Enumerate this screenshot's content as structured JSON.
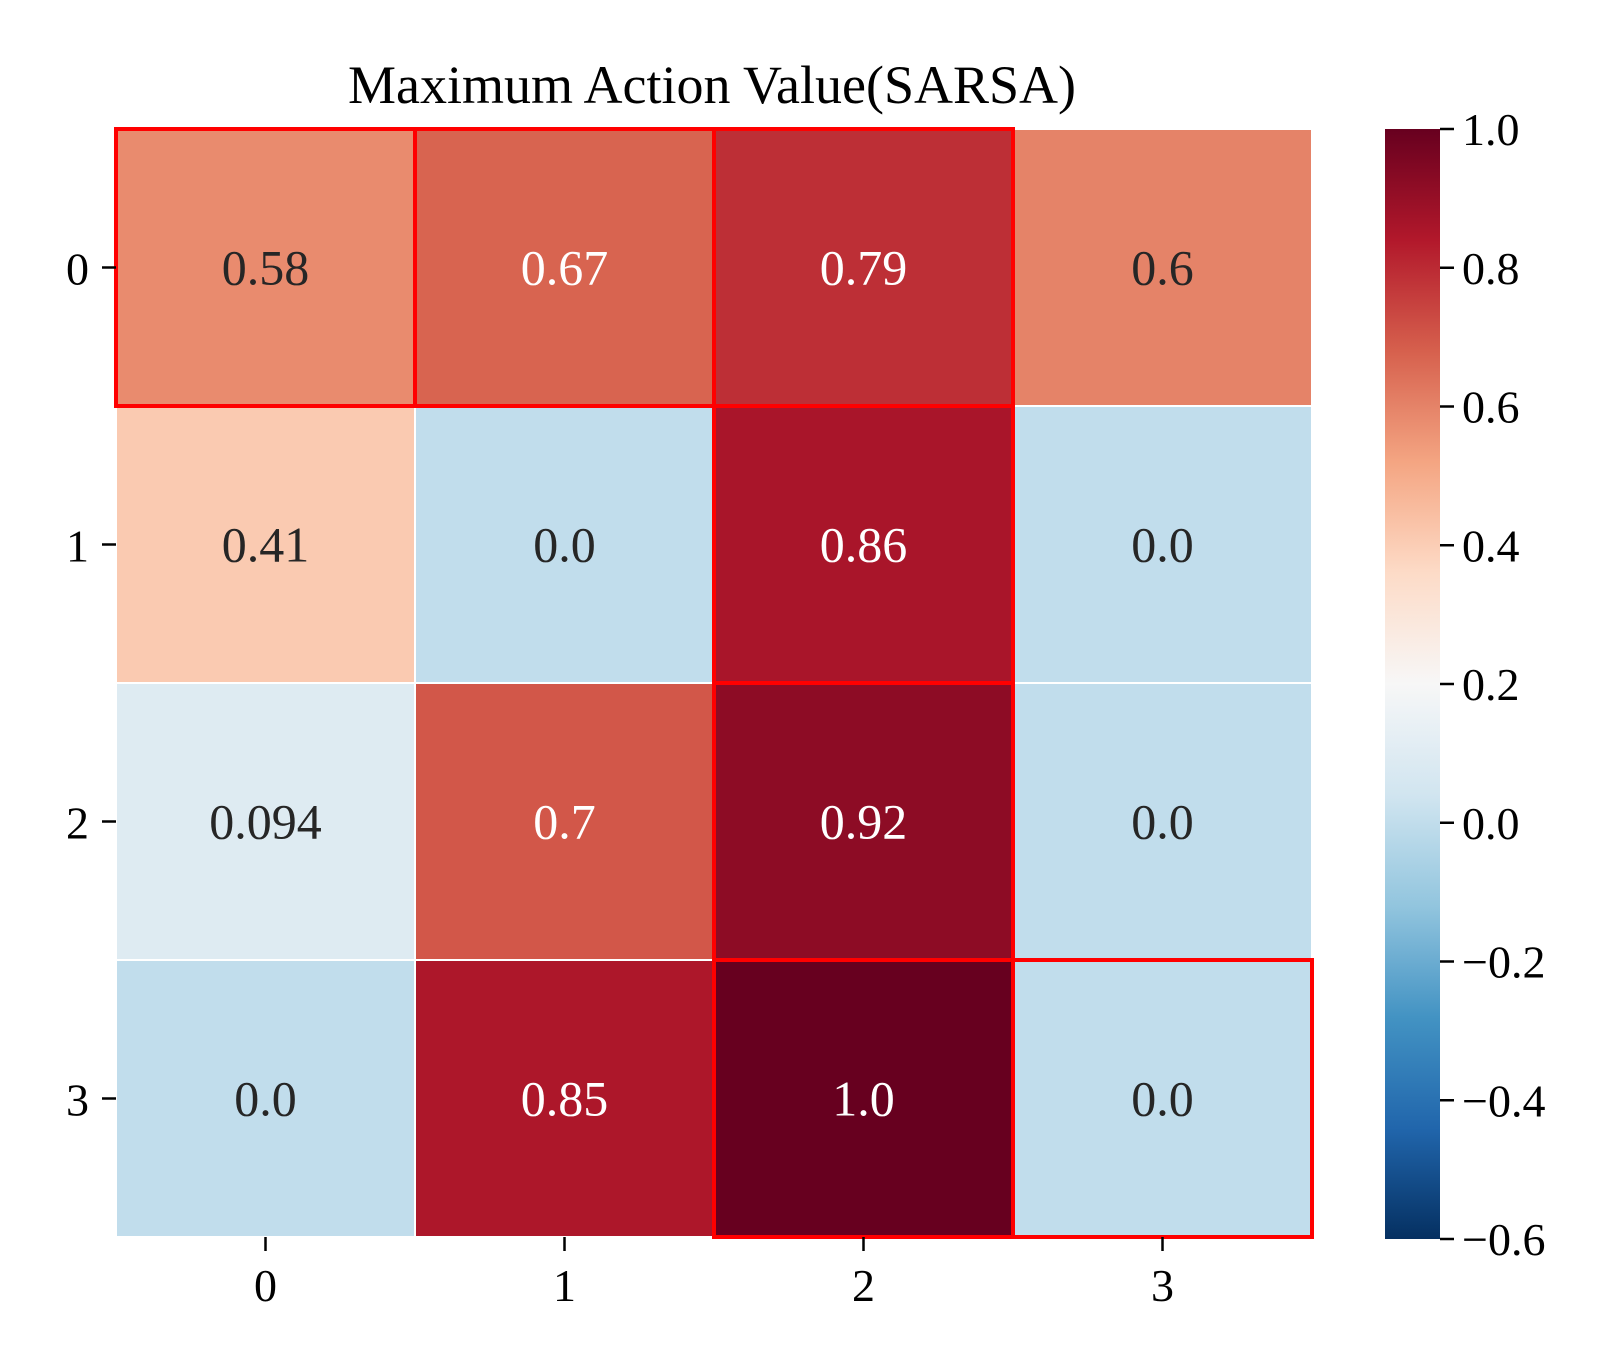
{
  "chart_data": {
    "type": "heatmap",
    "title": "Maximum Action Value(SARSA)",
    "xlabel": "",
    "ylabel": "",
    "x_categories": [
      "0",
      "1",
      "2",
      "3"
    ],
    "y_categories": [
      "0",
      "1",
      "2",
      "3"
    ],
    "values": [
      [
        0.58,
        0.67,
        0.79,
        0.6
      ],
      [
        0.41,
        0.0,
        0.86,
        0.0
      ],
      [
        0.094,
        0.7,
        0.92,
        0.0
      ],
      [
        0.0,
        0.85,
        1.0,
        0.0
      ]
    ],
    "cell_labels": [
      [
        "0.58",
        "0.67",
        "0.79",
        "0.6"
      ],
      [
        "0.41",
        "0.0",
        "0.86",
        "0.0"
      ],
      [
        "0.094",
        "0.7",
        "0.92",
        "0.0"
      ],
      [
        "0.0",
        "0.85",
        "1.0",
        "0.0"
      ]
    ],
    "colormap": "RdBu_r",
    "vmin": -0.6,
    "vmax": 1.0,
    "colorbar_ticks": [
      "1.0",
      "0.8",
      "0.6",
      "0.4",
      "0.2",
      "0.0",
      "−0.2",
      "−0.4",
      "−0.6"
    ],
    "colorbar_tick_values": [
      1.0,
      0.8,
      0.6,
      0.4,
      0.2,
      0.0,
      -0.2,
      -0.4,
      -0.6
    ],
    "highlighted_path": [
      [
        0,
        0
      ],
      [
        0,
        1
      ],
      [
        0,
        2
      ],
      [
        1,
        2
      ],
      [
        2,
        2
      ],
      [
        3,
        2
      ],
      [
        3,
        3
      ]
    ],
    "highlight_color": "#ff0000",
    "dark_text_color": "#262626",
    "light_text_color": "#ffffff"
  }
}
